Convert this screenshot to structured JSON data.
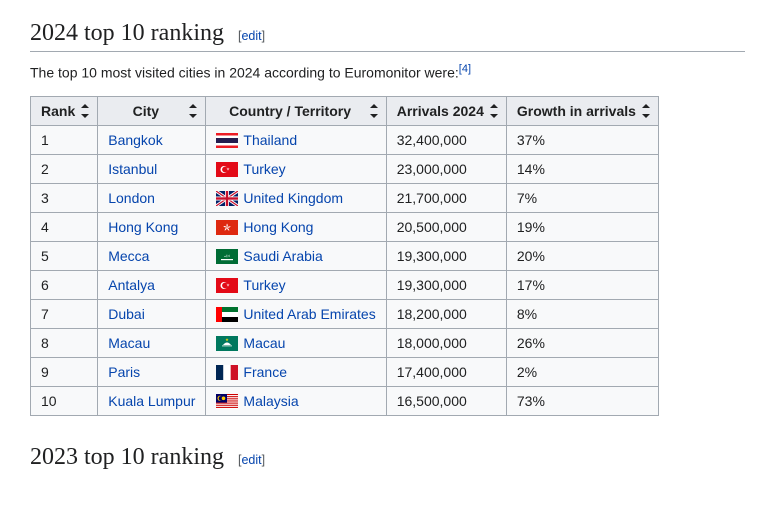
{
  "heading": {
    "title": "2024 top 10 ranking",
    "edit_open": "[",
    "edit_label": "edit",
    "edit_close": "]"
  },
  "intro": {
    "text": "The top 10 most visited cities in 2024 according to Euromonitor were:",
    "ref": "[4]"
  },
  "table": {
    "columns": [
      "Rank",
      "City",
      "Country / Territory",
      "Arrivals 2024",
      "Growth in arrivals"
    ],
    "rows": [
      {
        "rank": "1",
        "city": "Bangkok",
        "country": "Thailand",
        "flag": "th",
        "arrivals": "32,400,000",
        "growth": "37%"
      },
      {
        "rank": "2",
        "city": "Istanbul",
        "country": "Turkey",
        "flag": "tr",
        "arrivals": "23,000,000",
        "growth": "14%"
      },
      {
        "rank": "3",
        "city": "London",
        "country": "United Kingdom",
        "flag": "gb",
        "arrivals": "21,700,000",
        "growth": "7%"
      },
      {
        "rank": "4",
        "city": "Hong Kong",
        "country": "Hong Kong",
        "flag": "hk",
        "arrivals": "20,500,000",
        "growth": "19%"
      },
      {
        "rank": "5",
        "city": "Mecca",
        "country": "Saudi Arabia",
        "flag": "sa",
        "arrivals": "19,300,000",
        "growth": "20%"
      },
      {
        "rank": "6",
        "city": "Antalya",
        "country": "Turkey",
        "flag": "tr",
        "arrivals": "19,300,000",
        "growth": "17%"
      },
      {
        "rank": "7",
        "city": "Dubai",
        "country": "United Arab Emirates",
        "flag": "ae",
        "arrivals": "18,200,000",
        "growth": "8%"
      },
      {
        "rank": "8",
        "city": "Macau",
        "country": "Macau",
        "flag": "mo",
        "arrivals": "18,000,000",
        "growth": "26%"
      },
      {
        "rank": "9",
        "city": "Paris",
        "country": "France",
        "flag": "fr",
        "arrivals": "17,400,000",
        "growth": "2%"
      },
      {
        "rank": "10",
        "city": "Kuala Lumpur",
        "country": "Malaysia",
        "flag": "my",
        "arrivals": "16,500,000",
        "growth": "73%"
      }
    ]
  },
  "next_heading": {
    "title": "2023 top 10 ranking",
    "edit_open": "[",
    "edit_label": "edit",
    "edit_close": "]"
  },
  "colors": {
    "link": "#0645ad",
    "border": "#a2a9b1",
    "header_bg": "#eaecf0",
    "row_bg": "#f8f9fa"
  }
}
